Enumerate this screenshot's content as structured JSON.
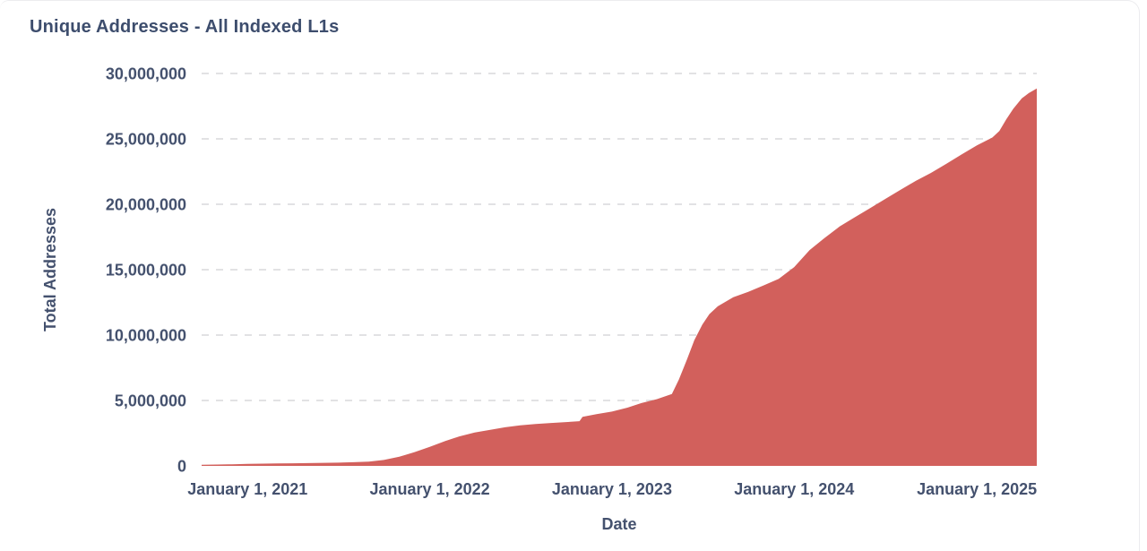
{
  "card": {
    "title": "Unique Addresses - All Indexed L1s"
  },
  "colors": {
    "accent_area": "#d2605c",
    "title_text": "#3d4d6d",
    "axis_text": "#44516e",
    "gridline": "#d9d9dc",
    "card_border": "#ececef",
    "background": "#ffffff"
  },
  "chart_data": {
    "type": "area",
    "title": "Unique Addresses - All Indexed L1s",
    "xlabel": "Date",
    "ylabel": "Total Addresses",
    "legend": "none",
    "grid": "horizontal-dashed",
    "ylim": [
      0,
      30000000
    ],
    "x_range": [
      "2020-10-01",
      "2025-05-01"
    ],
    "y_ticks": [
      {
        "value": 0,
        "label": "0"
      },
      {
        "value": 5000000,
        "label": "5,000,000"
      },
      {
        "value": 10000000,
        "label": "10,000,000"
      },
      {
        "value": 15000000,
        "label": "15,000,000"
      },
      {
        "value": 20000000,
        "label": "20,000,000"
      },
      {
        "value": 25000000,
        "label": "25,000,000"
      },
      {
        "value": 30000000,
        "label": "30,000,000"
      }
    ],
    "x_ticks": [
      {
        "date": "2021-01-01",
        "label": "January 1, 2021"
      },
      {
        "date": "2022-01-01",
        "label": "January 1, 2022"
      },
      {
        "date": "2023-01-01",
        "label": "January 1, 2023"
      },
      {
        "date": "2024-01-01",
        "label": "January 1, 2024"
      },
      {
        "date": "2025-01-01",
        "label": "January 1, 2025"
      }
    ],
    "series": [
      {
        "name": "Total Addresses",
        "color": "#d2605c",
        "points": [
          [
            "2020-10-01",
            80000
          ],
          [
            "2020-11-01",
            100000
          ],
          [
            "2020-12-01",
            120000
          ],
          [
            "2021-01-01",
            150000
          ],
          [
            "2021-02-01",
            170000
          ],
          [
            "2021-03-01",
            185000
          ],
          [
            "2021-04-01",
            200000
          ],
          [
            "2021-05-01",
            215000
          ],
          [
            "2021-06-01",
            230000
          ],
          [
            "2021-07-01",
            250000
          ],
          [
            "2021-08-01",
            280000
          ],
          [
            "2021-09-01",
            330000
          ],
          [
            "2021-10-01",
            450000
          ],
          [
            "2021-11-01",
            700000
          ],
          [
            "2021-12-01",
            1050000
          ],
          [
            "2022-01-01",
            1450000
          ],
          [
            "2022-02-01",
            1900000
          ],
          [
            "2022-03-01",
            2250000
          ],
          [
            "2022-04-01",
            2550000
          ],
          [
            "2022-05-01",
            2750000
          ],
          [
            "2022-06-01",
            2950000
          ],
          [
            "2022-07-01",
            3100000
          ],
          [
            "2022-08-01",
            3200000
          ],
          [
            "2022-09-01",
            3280000
          ],
          [
            "2022-10-01",
            3350000
          ],
          [
            "2022-10-28",
            3420000
          ],
          [
            "2022-11-03",
            3750000
          ],
          [
            "2022-12-01",
            3950000
          ],
          [
            "2023-01-01",
            4150000
          ],
          [
            "2023-02-01",
            4450000
          ],
          [
            "2023-03-01",
            4800000
          ],
          [
            "2023-04-01",
            5100000
          ],
          [
            "2023-05-01",
            5500000
          ],
          [
            "2023-05-15",
            6600000
          ],
          [
            "2023-06-01",
            8200000
          ],
          [
            "2023-06-15",
            9600000
          ],
          [
            "2023-07-01",
            10800000
          ],
          [
            "2023-07-15",
            11600000
          ],
          [
            "2023-08-01",
            12200000
          ],
          [
            "2023-09-01",
            12900000
          ],
          [
            "2023-10-01",
            13300000
          ],
          [
            "2023-11-01",
            13800000
          ],
          [
            "2023-12-01",
            14300000
          ],
          [
            "2024-01-01",
            15200000
          ],
          [
            "2024-02-01",
            16500000
          ],
          [
            "2024-03-01",
            17400000
          ],
          [
            "2024-04-01",
            18300000
          ],
          [
            "2024-05-01",
            19000000
          ],
          [
            "2024-06-01",
            19700000
          ],
          [
            "2024-07-01",
            20400000
          ],
          [
            "2024-08-01",
            21100000
          ],
          [
            "2024-09-01",
            21800000
          ],
          [
            "2024-10-01",
            22400000
          ],
          [
            "2024-11-01",
            23100000
          ],
          [
            "2024-12-01",
            23800000
          ],
          [
            "2025-01-01",
            24500000
          ],
          [
            "2025-02-01",
            25100000
          ],
          [
            "2025-02-15",
            25600000
          ],
          [
            "2025-03-01",
            26500000
          ],
          [
            "2025-03-15",
            27300000
          ],
          [
            "2025-04-01",
            28100000
          ],
          [
            "2025-04-15",
            28500000
          ],
          [
            "2025-05-01",
            28850000
          ]
        ]
      }
    ]
  }
}
